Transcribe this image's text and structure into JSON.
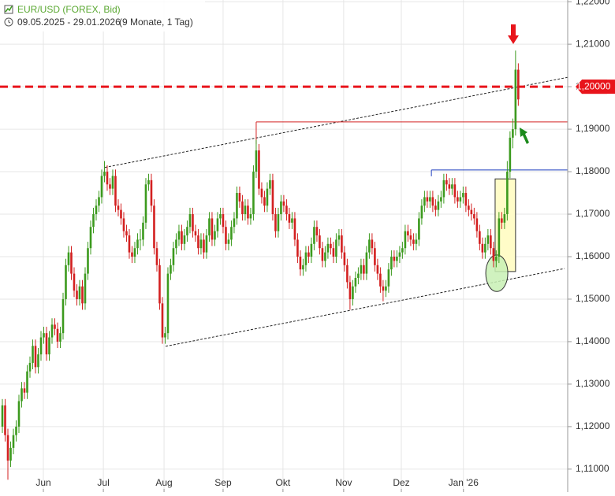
{
  "chart_data": {
    "type": "candlestick",
    "title": "EUR/USD (FOREX, Bid)",
    "subtitle": "09.05.2025 - 29.01.2026",
    "period": "(9 Monate, 1 Tag)",
    "up_color": "#3c9a1e",
    "down_color": "#d32020",
    "grid": true,
    "xlim": [
      -0.86,
      204.9
    ],
    "ylim": [
      1.1046,
      1.2204
    ],
    "xticks": [
      {
        "value": 14.86,
        "label": "Jun"
      },
      {
        "value": 36.6,
        "label": "Jul"
      },
      {
        "value": 58.6,
        "label": "Aug"
      },
      {
        "value": 80,
        "label": "Sep"
      },
      {
        "value": 101.7,
        "label": "Okt"
      },
      {
        "value": 123.7,
        "label": "Nov"
      },
      {
        "value": 144.6,
        "label": "Dez"
      },
      {
        "value": 167.1,
        "label": "Jan '26"
      }
    ],
    "yticks": [
      {
        "value": 1.11,
        "label": "1,11000"
      },
      {
        "value": 1.12,
        "label": "1,12000"
      },
      {
        "value": 1.13,
        "label": "1,13000"
      },
      {
        "value": 1.14,
        "label": "1,14000"
      },
      {
        "value": 1.15,
        "label": "1,15000"
      },
      {
        "value": 1.16,
        "label": "1,16000"
      },
      {
        "value": 1.17,
        "label": "1,17000"
      },
      {
        "value": 1.18,
        "label": "1,18000"
      },
      {
        "value": 1.19,
        "label": "1,19000"
      },
      {
        "value": 1.2,
        "label": "1,20000"
      },
      {
        "value": 1.21,
        "label": "1,21000"
      },
      {
        "value": 1.22,
        "label": "1,22000"
      }
    ],
    "levels": [
      {
        "value": 1.2,
        "color": "#e8141b",
        "style": "dashed",
        "label": "1,20000"
      },
      {
        "value": 1.1917,
        "color": "#d32020",
        "style": "solid",
        "from": 92
      },
      {
        "value": 1.1804,
        "color": "#1f3fbf",
        "style": "solid",
        "from": 155.5
      }
    ],
    "trend_lines": [
      {
        "x": [
          37.15,
          204.9
        ],
        "y": [
          1.181,
          1.2022
        ]
      },
      {
        "x": [
          59.15,
          203.76
        ],
        "y": [
          1.1389,
          1.1572
        ]
      }
    ],
    "box": {
      "x": [
        178.6,
        186.0
      ],
      "y": [
        1.1565,
        1.1783
      ]
    },
    "ellipse": {
      "x": 179.2,
      "y": 1.1561,
      "rx": 4,
      "ry": 0.0043
    },
    "ohlc": [
      [
        1.12,
        1.1265,
        1.1185,
        1.125
      ],
      [
        1.125,
        1.1265,
        1.1165,
        1.118
      ],
      [
        1.118,
        1.1195,
        1.1075,
        1.112
      ],
      [
        1.112,
        1.1165,
        1.1105,
        1.115
      ],
      [
        1.115,
        1.1195,
        1.1135,
        1.118
      ],
      [
        1.118,
        1.1215,
        1.1165,
        1.12
      ],
      [
        1.12,
        1.1275,
        1.1185,
        1.126
      ],
      [
        1.126,
        1.1305,
        1.1245,
        1.129
      ],
      [
        1.129,
        1.1305,
        1.1265,
        1.128
      ],
      [
        1.128,
        1.1345,
        1.1265,
        1.133
      ],
      [
        1.133,
        1.1365,
        1.1315,
        1.135
      ],
      [
        1.135,
        1.1405,
        1.1335,
        1.139
      ],
      [
        1.139,
        1.1405,
        1.1325,
        1.134
      ],
      [
        1.134,
        1.1385,
        1.1325,
        1.137
      ],
      [
        1.137,
        1.1425,
        1.1355,
        1.141
      ],
      [
        1.141,
        1.1435,
        1.1395,
        1.142
      ],
      [
        1.142,
        1.1435,
        1.1355,
        1.137
      ],
      [
        1.137,
        1.1425,
        1.1355,
        1.141
      ],
      [
        1.141,
        1.1455,
        1.1395,
        1.144
      ],
      [
        1.144,
        1.1455,
        1.1415,
        1.143
      ],
      [
        1.143,
        1.1445,
        1.1385,
        1.14
      ],
      [
        1.14,
        1.1435,
        1.1385,
        1.142
      ],
      [
        1.142,
        1.1515,
        1.1405,
        1.15
      ],
      [
        1.15,
        1.1595,
        1.1485,
        1.158
      ],
      [
        1.158,
        1.1625,
        1.1565,
        1.161
      ],
      [
        1.161,
        1.1625,
        1.1545,
        1.156
      ],
      [
        1.156,
        1.1575,
        1.1505,
        1.152
      ],
      [
        1.152,
        1.1535,
        1.1485,
        1.15
      ],
      [
        1.15,
        1.1545,
        1.1485,
        1.153
      ],
      [
        1.153,
        1.1545,
        1.1475,
        1.149
      ],
      [
        1.149,
        1.1575,
        1.1475,
        1.156
      ],
      [
        1.156,
        1.1635,
        1.1545,
        1.162
      ],
      [
        1.162,
        1.1685,
        1.1605,
        1.167
      ],
      [
        1.167,
        1.1715,
        1.1655,
        1.17
      ],
      [
        1.17,
        1.1735,
        1.1685,
        1.172
      ],
      [
        1.172,
        1.1755,
        1.1705,
        1.174
      ],
      [
        1.174,
        1.1805,
        1.1725,
        1.179
      ],
      [
        1.179,
        1.1825,
        1.1775,
        1.18
      ],
      [
        1.18,
        1.1815,
        1.1755,
        1.177
      ],
      [
        1.177,
        1.1785,
        1.1745,
        1.176
      ],
      [
        1.176,
        1.1805,
        1.1745,
        1.179
      ],
      [
        1.179,
        1.1805,
        1.1705,
        1.172
      ],
      [
        1.172,
        1.1735,
        1.1695,
        1.171
      ],
      [
        1.171,
        1.1725,
        1.1675,
        1.169
      ],
      [
        1.169,
        1.1705,
        1.1645,
        1.166
      ],
      [
        1.166,
        1.1675,
        1.1635,
        1.165
      ],
      [
        1.165,
        1.1665,
        1.1595,
        1.161
      ],
      [
        1.161,
        1.1625,
        1.1585,
        1.16
      ],
      [
        1.16,
        1.1635,
        1.1585,
        1.162
      ],
      [
        1.162,
        1.1655,
        1.1605,
        1.164
      ],
      [
        1.164,
        1.1665,
        1.1615,
        1.164
      ],
      [
        1.164,
        1.1695,
        1.1625,
        1.168
      ],
      [
        1.168,
        1.1785,
        1.1665,
        1.177
      ],
      [
        1.177,
        1.1795,
        1.1755,
        1.178
      ],
      [
        1.178,
        1.1795,
        1.1705,
        1.172
      ],
      [
        1.172,
        1.1735,
        1.1605,
        1.162
      ],
      [
        1.162,
        1.1635,
        1.1565,
        1.158
      ],
      [
        1.158,
        1.1595,
        1.1475,
        1.149
      ],
      [
        1.149,
        1.1505,
        1.1395,
        1.141
      ],
      [
        1.141,
        1.1435,
        1.1395,
        1.142
      ],
      [
        1.142,
        1.1575,
        1.1405,
        1.156
      ],
      [
        1.156,
        1.1595,
        1.1545,
        1.158
      ],
      [
        1.158,
        1.1635,
        1.1565,
        1.162
      ],
      [
        1.162,
        1.1655,
        1.1605,
        1.164
      ],
      [
        1.164,
        1.1675,
        1.1625,
        1.166
      ],
      [
        1.166,
        1.1675,
        1.1615,
        1.163
      ],
      [
        1.163,
        1.1665,
        1.1615,
        1.165
      ],
      [
        1.165,
        1.1685,
        1.1635,
        1.167
      ],
      [
        1.167,
        1.1715,
        1.1655,
        1.17
      ],
      [
        1.17,
        1.1715,
        1.1645,
        1.166
      ],
      [
        1.166,
        1.1675,
        1.1635,
        1.165
      ],
      [
        1.165,
        1.1665,
        1.1605,
        1.162
      ],
      [
        1.162,
        1.1655,
        1.1605,
        1.164
      ],
      [
        1.164,
        1.1655,
        1.1595,
        1.161
      ],
      [
        1.161,
        1.1665,
        1.1595,
        1.165
      ],
      [
        1.165,
        1.1705,
        1.1635,
        1.169
      ],
      [
        1.169,
        1.1705,
        1.1625,
        1.164
      ],
      [
        1.164,
        1.1675,
        1.1625,
        1.166
      ],
      [
        1.166,
        1.1705,
        1.1645,
        1.169
      ],
      [
        1.169,
        1.1715,
        1.1675,
        1.17
      ],
      [
        1.17,
        1.1715,
        1.1655,
        1.167
      ],
      [
        1.167,
        1.1685,
        1.1615,
        1.163
      ],
      [
        1.163,
        1.1655,
        1.1615,
        1.164
      ],
      [
        1.164,
        1.1685,
        1.1625,
        1.167
      ],
      [
        1.167,
        1.1705,
        1.1655,
        1.169
      ],
      [
        1.169,
        1.1765,
        1.1675,
        1.175
      ],
      [
        1.175,
        1.1765,
        1.1715,
        1.173
      ],
      [
        1.173,
        1.1745,
        1.1685,
        1.17
      ],
      [
        1.17,
        1.1735,
        1.1685,
        1.172
      ],
      [
        1.172,
        1.1735,
        1.1675,
        1.169
      ],
      [
        1.169,
        1.1715,
        1.1675,
        1.17
      ],
      [
        1.17,
        1.1815,
        1.1685,
        1.18
      ],
      [
        1.18,
        1.1875,
        1.1785,
        1.185
      ],
      [
        1.185,
        1.1865,
        1.1745,
        1.176
      ],
      [
        1.176,
        1.1775,
        1.1725,
        1.174
      ],
      [
        1.174,
        1.1755,
        1.1705,
        1.172
      ],
      [
        1.172,
        1.1775,
        1.1705,
        1.176
      ],
      [
        1.176,
        1.1795,
        1.1745,
        1.178
      ],
      [
        1.178,
        1.1795,
        1.1685,
        1.17
      ],
      [
        1.17,
        1.1715,
        1.1645,
        1.166
      ],
      [
        1.166,
        1.1715,
        1.1645,
        1.17
      ],
      [
        1.17,
        1.1745,
        1.1685,
        1.173
      ],
      [
        1.173,
        1.1745,
        1.1705,
        1.172
      ],
      [
        1.172,
        1.1735,
        1.1685,
        1.17
      ],
      [
        1.17,
        1.1715,
        1.1665,
        1.168
      ],
      [
        1.168,
        1.1705,
        1.1665,
        1.169
      ],
      [
        1.169,
        1.1705,
        1.1625,
        1.164
      ],
      [
        1.164,
        1.1655,
        1.1585,
        1.16
      ],
      [
        1.16,
        1.1615,
        1.1555,
        1.157
      ],
      [
        1.157,
        1.1595,
        1.1555,
        1.158
      ],
      [
        1.158,
        1.1625,
        1.1565,
        1.161
      ],
      [
        1.161,
        1.1625,
        1.1585,
        1.16
      ],
      [
        1.16,
        1.1645,
        1.1585,
        1.163
      ],
      [
        1.163,
        1.1685,
        1.1615,
        1.167
      ],
      [
        1.167,
        1.1685,
        1.1635,
        1.165
      ],
      [
        1.165,
        1.1665,
        1.1605,
        1.162
      ],
      [
        1.162,
        1.1635,
        1.1575,
        1.159
      ],
      [
        1.159,
        1.1625,
        1.1575,
        1.161
      ],
      [
        1.161,
        1.1645,
        1.1595,
        1.163
      ],
      [
        1.163,
        1.1645,
        1.1605,
        1.162
      ],
      [
        1.162,
        1.1635,
        1.1585,
        1.16
      ],
      [
        1.16,
        1.1655,
        1.1585,
        1.164
      ],
      [
        1.164,
        1.1665,
        1.1625,
        1.165
      ],
      [
        1.165,
        1.1665,
        1.1595,
        1.161
      ],
      [
        1.161,
        1.1625,
        1.1565,
        1.158
      ],
      [
        1.158,
        1.1595,
        1.1525,
        1.154
      ],
      [
        1.154,
        1.1555,
        1.1475,
        1.15
      ],
      [
        1.15,
        1.1545,
        1.1485,
        1.153
      ],
      [
        1.153,
        1.1565,
        1.1515,
        1.155
      ],
      [
        1.155,
        1.1575,
        1.1535,
        1.156
      ],
      [
        1.156,
        1.1595,
        1.1545,
        1.158
      ],
      [
        1.158,
        1.1595,
        1.1545,
        1.156
      ],
      [
        1.156,
        1.1625,
        1.1545,
        1.161
      ],
      [
        1.161,
        1.1655,
        1.1595,
        1.164
      ],
      [
        1.164,
        1.1655,
        1.1605,
        1.162
      ],
      [
        1.162,
        1.1635,
        1.1565,
        1.158
      ],
      [
        1.158,
        1.1595,
        1.1545,
        1.156
      ],
      [
        1.156,
        1.1575,
        1.1515,
        1.153
      ],
      [
        1.153,
        1.1545,
        1.1495,
        1.152
      ],
      [
        1.152,
        1.1545,
        1.1505,
        1.153
      ],
      [
        1.153,
        1.1585,
        1.1515,
        1.157
      ],
      [
        1.157,
        1.1615,
        1.1555,
        1.16
      ],
      [
        1.16,
        1.1615,
        1.1575,
        1.159
      ],
      [
        1.159,
        1.1615,
        1.1575,
        1.16
      ],
      [
        1.16,
        1.1625,
        1.1585,
        1.161
      ],
      [
        1.161,
        1.1635,
        1.1595,
        1.162
      ],
      [
        1.162,
        1.1675,
        1.1605,
        1.166
      ],
      [
        1.166,
        1.1675,
        1.1635,
        1.165
      ],
      [
        1.165,
        1.1665,
        1.1625,
        1.164
      ],
      [
        1.164,
        1.1655,
        1.1615,
        1.163
      ],
      [
        1.163,
        1.1655,
        1.1615,
        1.164
      ],
      [
        1.164,
        1.1705,
        1.1625,
        1.169
      ],
      [
        1.169,
        1.1735,
        1.1675,
        1.172
      ],
      [
        1.172,
        1.1755,
        1.1705,
        1.174
      ],
      [
        1.174,
        1.1755,
        1.1715,
        1.173
      ],
      [
        1.173,
        1.1755,
        1.1715,
        1.174
      ],
      [
        1.174,
        1.1755,
        1.1705,
        1.172
      ],
      [
        1.172,
        1.1735,
        1.1695,
        1.171
      ],
      [
        1.171,
        1.1745,
        1.1695,
        1.173
      ],
      [
        1.173,
        1.1755,
        1.1715,
        1.174
      ],
      [
        1.174,
        1.1795,
        1.1725,
        1.178
      ],
      [
        1.178,
        1.1795,
        1.1755,
        1.177
      ],
      [
        1.177,
        1.1785,
        1.1745,
        1.176
      ],
      [
        1.176,
        1.1785,
        1.1745,
        1.177
      ],
      [
        1.177,
        1.1785,
        1.1725,
        1.174
      ],
      [
        1.174,
        1.1755,
        1.1715,
        1.173
      ],
      [
        1.173,
        1.1755,
        1.1715,
        1.174
      ],
      [
        1.174,
        1.1765,
        1.1725,
        1.175
      ],
      [
        1.175,
        1.1765,
        1.1705,
        1.172
      ],
      [
        1.172,
        1.1735,
        1.1695,
        1.171
      ],
      [
        1.171,
        1.1725,
        1.1685,
        1.17
      ],
      [
        1.17,
        1.1715,
        1.1675,
        1.169
      ],
      [
        1.169,
        1.1705,
        1.1645,
        1.166
      ],
      [
        1.166,
        1.1675,
        1.1615,
        1.163
      ],
      [
        1.163,
        1.1645,
        1.1595,
        1.161
      ],
      [
        1.161,
        1.1645,
        1.1595,
        1.163
      ],
      [
        1.163,
        1.1665,
        1.1615,
        1.165
      ],
      [
        1.165,
        1.1665,
        1.1605,
        1.162
      ],
      [
        1.162,
        1.1635,
        1.1575,
        1.159
      ],
      [
        1.159,
        1.1615,
        1.1575,
        1.16
      ],
      [
        1.16,
        1.1705,
        1.1585,
        1.169
      ],
      [
        1.169,
        1.1705,
        1.1665,
        1.168
      ],
      [
        1.168,
        1.1715,
        1.1665,
        1.17
      ],
      [
        1.17,
        1.1825,
        1.1685,
        1.18
      ],
      [
        1.18,
        1.1895,
        1.1785,
        1.188
      ],
      [
        1.188,
        1.1925,
        1.1855,
        1.19
      ],
      [
        1.19,
        1.2085,
        1.1885,
        1.204
      ],
      [
        1.204,
        1.2055,
        1.1955,
        1.197
      ]
    ]
  }
}
